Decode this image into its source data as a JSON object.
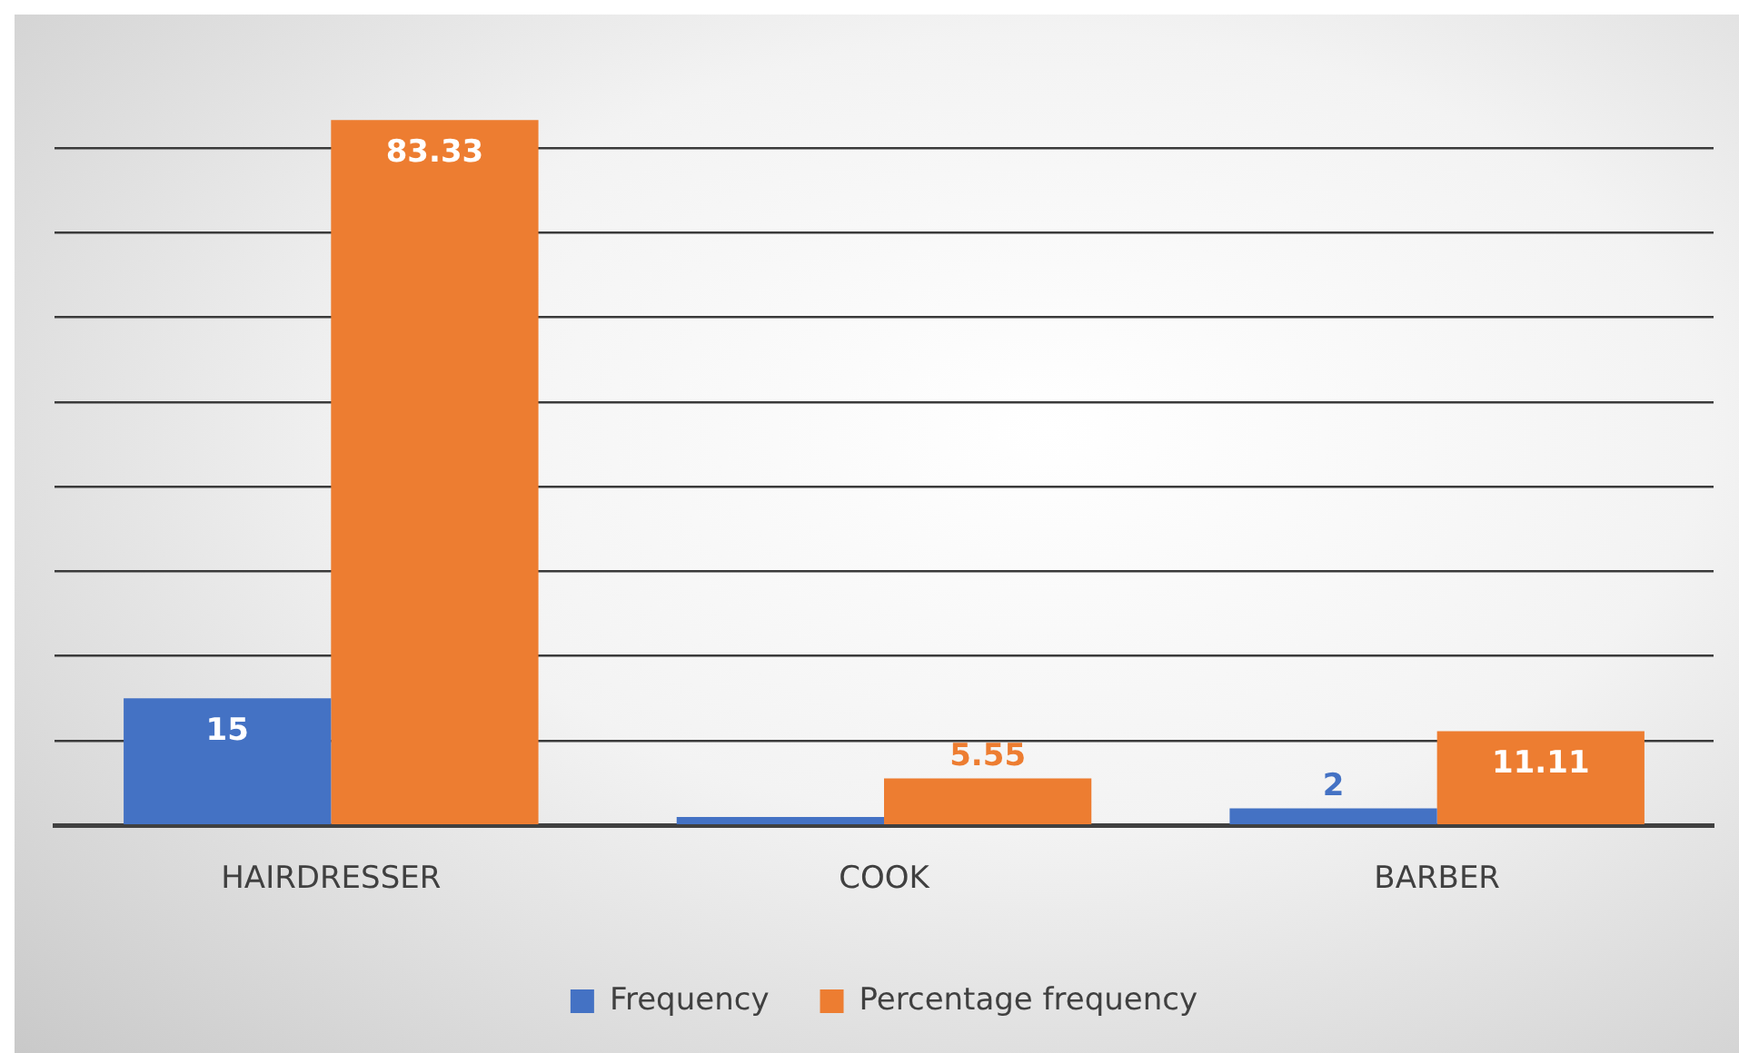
{
  "chart_data": {
    "type": "bar",
    "categories": [
      "HAIRDRESSER",
      "COOK",
      "BARBER"
    ],
    "series": [
      {
        "name": "Frequency",
        "color": "#4472c4",
        "values": [
          15,
          1,
          2
        ],
        "value_labels": [
          "15",
          null,
          "2"
        ]
      },
      {
        "name": "Percentage frequency",
        "color": "#ed7d31",
        "values": [
          83.33,
          5.55,
          11.11
        ],
        "value_labels": [
          "83.33",
          "5.55",
          "11.11"
        ]
      }
    ],
    "yticks": [
      {
        "value": 0,
        "label": null
      },
      {
        "value": 10,
        "label": null
      },
      {
        "value": 20,
        "label": null
      },
      {
        "value": 30,
        "label": null
      },
      {
        "value": 40,
        "label": null
      },
      {
        "value": 50,
        "label": null
      },
      {
        "value": 60,
        "label": null
      },
      {
        "value": 70,
        "label": null
      },
      {
        "value": 80,
        "label": null
      }
    ],
    "grid": "y",
    "legend": "bottom",
    "tick_labels": "x"
  }
}
